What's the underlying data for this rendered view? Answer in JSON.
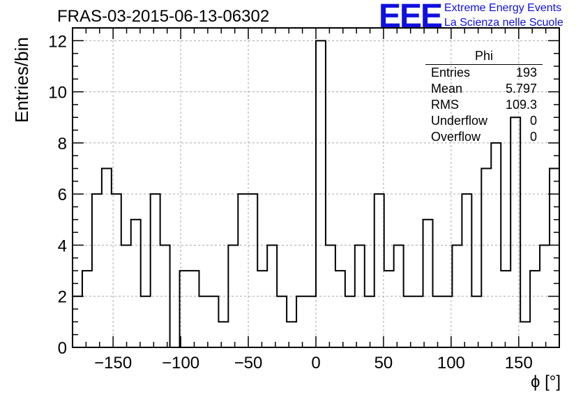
{
  "title": "FRAS-03-2015-06-13-06302",
  "logo": {
    "mark": "EEE",
    "line1": "Extreme Energy Events",
    "line2": "La Scienza nelle Scuole",
    "color": "#1010e0"
  },
  "stats_box": {
    "title": "Phi",
    "rows": [
      {
        "label": "Entries",
        "value": "193"
      },
      {
        "label": "Mean",
        "value": "5.797"
      },
      {
        "label": "RMS",
        "value": "109.3"
      },
      {
        "label": "Underflow",
        "value": "0"
      },
      {
        "label": "Overflow",
        "value": "0"
      }
    ]
  },
  "chart_data": {
    "type": "bar",
    "style": "step-histogram",
    "xlabel": "ϕ [°]",
    "ylabel": "Entries/bin",
    "xlim": [
      -180,
      180
    ],
    "ylim": [
      0,
      12.5
    ],
    "xticks": [
      -150,
      -100,
      -50,
      0,
      50,
      100,
      150
    ],
    "yticks": [
      0,
      2,
      4,
      6,
      8,
      10,
      12
    ],
    "grid": true,
    "bin_width": 7.2,
    "bin_low_edges": [
      -180,
      -172.8,
      -165.6,
      -158.4,
      -151.2,
      -144,
      -136.8,
      -129.6,
      -122.4,
      -115.2,
      -108,
      -100.8,
      -93.6,
      -86.4,
      -79.2,
      -72,
      -64.8,
      -57.6,
      -50.4,
      -43.2,
      -36,
      -28.8,
      -21.6,
      -14.4,
      -7.2,
      0,
      7.2,
      14.4,
      21.6,
      28.8,
      36,
      43.2,
      50.4,
      57.6,
      64.8,
      72,
      79.2,
      86.4,
      93.6,
      100.8,
      108,
      115.2,
      122.4,
      129.6,
      136.8,
      144,
      151.2,
      158.4,
      165.6,
      172.8
    ],
    "values": [
      2,
      3,
      6,
      7,
      6,
      4,
      5,
      2,
      6,
      4,
      0,
      3,
      3,
      2,
      2,
      1,
      4,
      6,
      6,
      3,
      4,
      2,
      1,
      2,
      2,
      12,
      4,
      3,
      2,
      4,
      2,
      6,
      3,
      4,
      2,
      2,
      5,
      2,
      2,
      4,
      6,
      2,
      7,
      8,
      3,
      9,
      1,
      3,
      4,
      7
    ]
  }
}
